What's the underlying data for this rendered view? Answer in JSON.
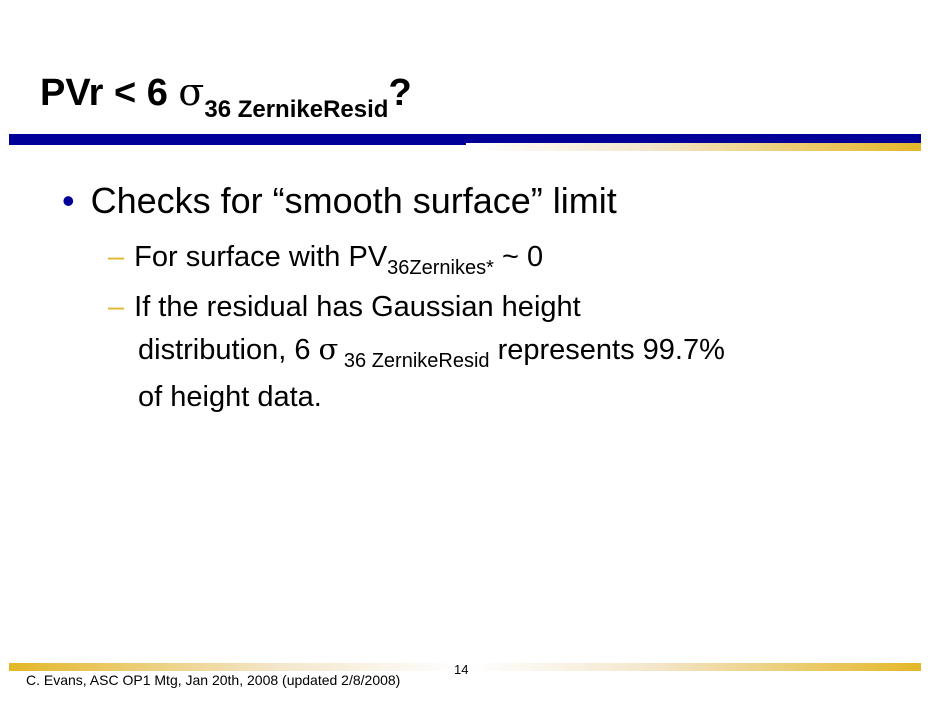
{
  "title": {
    "main": "PVr < 6 ",
    "sigma": "σ",
    "sub": "36 ZernikeResid",
    "end": "?"
  },
  "bullets": [
    {
      "text": "Checks for “smooth surface” limit",
      "marker": "•"
    },
    {
      "marker": "–",
      "pre": "For surface with PV",
      "sub": "36Zernikes*",
      "post": " ~ 0"
    },
    {
      "marker": "–",
      "line1": "If the residual has Gaussian height",
      "line2_pre": "distribution, 6 ",
      "sigma": "σ",
      "line2_sub": " 36 ZernikeResid",
      "line2_post": " represents 99.7%",
      "line3": "of height data."
    }
  ],
  "footer": {
    "text": "C. Evans, ASC OP1 Mtg, Jan 20th, 2008 (updated 2/8/2008)",
    "page": "14"
  },
  "colors": {
    "accent_blue": "#000099",
    "accent_gold": "#e4b728"
  }
}
